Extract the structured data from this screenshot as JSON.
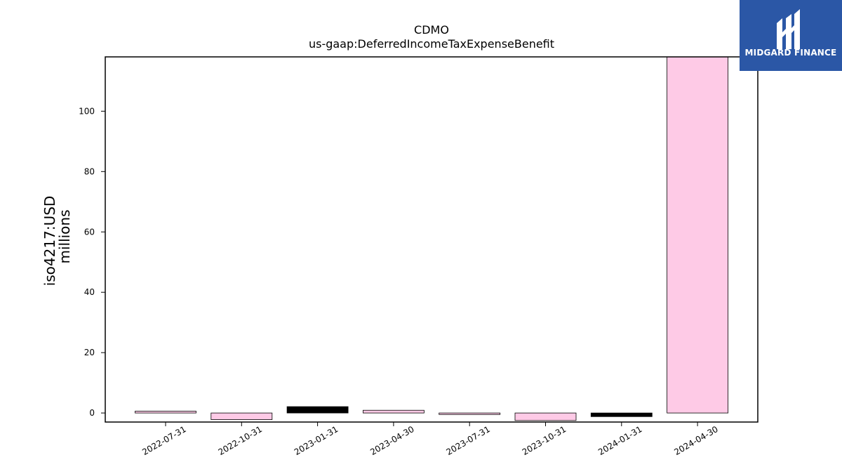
{
  "chart_data": {
    "type": "bar",
    "title": "CDMO",
    "subtitle": "us-gaap:DeferredIncomeTaxExpenseBenefit",
    "ylabel_line1": "iso4217:USD",
    "ylabel_line2": "millions",
    "categories": [
      "2022-07-31",
      "2022-10-31",
      "2023-01-31",
      "2023-04-30",
      "2023-07-31",
      "2023-10-31",
      "2024-01-31",
      "2024-04-30"
    ],
    "values": [
      0.6,
      -2.2,
      2.1,
      0.9,
      -0.5,
      -2.5,
      -1.2,
      118.0
    ],
    "colors": [
      "#fecae6",
      "#fecae6",
      "#000000",
      "#fecae6",
      "#fecae6",
      "#fecae6",
      "#000000",
      "#fecae6"
    ],
    "ylim": [
      -3.0,
      118.0
    ],
    "yticks": [
      0,
      20,
      40,
      60,
      80,
      100
    ],
    "grid": false
  },
  "logo": {
    "text": "MIDGARD FINANCE",
    "background": "#2b57a6"
  }
}
